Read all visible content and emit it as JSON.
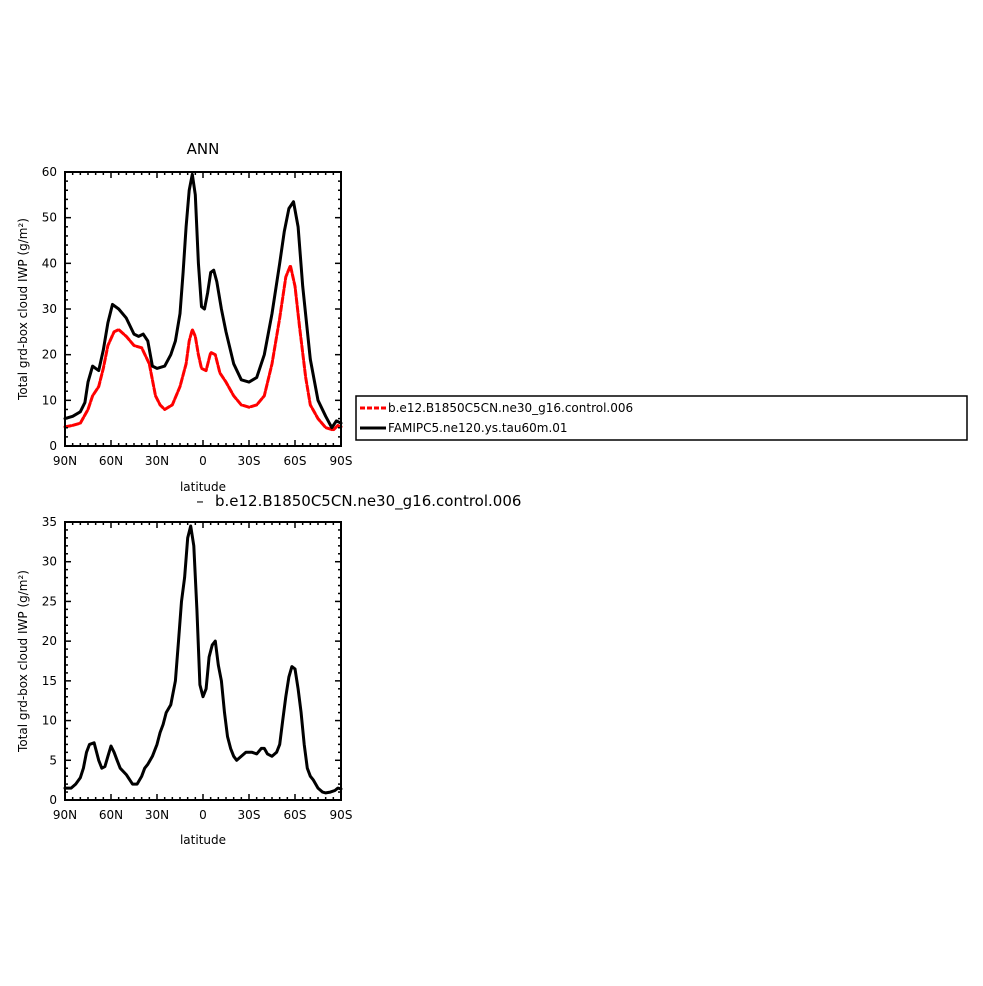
{
  "colors": {
    "series_1": "#ff0000",
    "series_2": "#000000",
    "axis": "#000000"
  },
  "top_title": "ANN",
  "bottom_title": "b.e12.B1850C5CN.ne30_g16.control.006",
  "bottom_title_prefix": "–",
  "legend": {
    "position": "right",
    "entries": [
      "b.e12.B1850C5CN.ne30_g16.control.006",
      "FAMIPC5.ne120.ys.tau60m.01"
    ]
  },
  "chart_data": [
    {
      "type": "line",
      "title": "ANN",
      "xlabel": "latitude",
      "ylabel": "Total grd-box cloud IWP (g/m²)",
      "xlim": [
        90,
        -90
      ],
      "ylim": [
        0,
        60
      ],
      "x_ticks": [
        "90N",
        "60N",
        "30N",
        "0",
        "30S",
        "60S",
        "90S"
      ],
      "y_ticks": [
        "0",
        "10",
        "20",
        "30",
        "40",
        "50",
        "60"
      ],
      "grid": false,
      "series": [
        {
          "name": "b.e12.B1850C5CN.ne30_g16.control.006",
          "color": "#ff0000",
          "dash": true,
          "x": [
            90,
            85,
            80,
            75,
            72,
            68,
            65,
            62,
            58,
            55,
            50,
            45,
            40,
            35,
            31,
            28,
            25,
            20,
            15,
            11,
            9,
            7,
            5,
            3,
            1,
            -2,
            -5,
            -8,
            -11,
            -15,
            -20,
            -25,
            -30,
            -35,
            -40,
            -45,
            -50,
            -54,
            -57,
            -60,
            -63,
            -67,
            -70,
            -75,
            -80,
            -85,
            -88,
            -90
          ],
          "y": [
            4.2,
            4.5,
            5.0,
            8.0,
            11.0,
            13.0,
            17.0,
            22.0,
            25.0,
            25.5,
            24.0,
            22.0,
            21.5,
            18.0,
            11.0,
            9.0,
            8.0,
            9.0,
            13.0,
            18.0,
            23.0,
            25.5,
            24.0,
            20.0,
            17.0,
            16.5,
            20.5,
            20.0,
            16.0,
            14.0,
            11.0,
            9.0,
            8.5,
            9.0,
            11.0,
            18.0,
            28.0,
            37.0,
            39.5,
            35.0,
            26.0,
            15.0,
            9.0,
            6.0,
            4.0,
            3.5,
            4.5,
            4.2
          ]
        },
        {
          "name": "FAMIPC5.ne120.ys.tau60m.01",
          "color": "#000000",
          "dash": false,
          "x": [
            90,
            85,
            80,
            77,
            75,
            72,
            70,
            68,
            65,
            62,
            59,
            55,
            50,
            45,
            42,
            39,
            36,
            33,
            30,
            25,
            21,
            18,
            15,
            13,
            11,
            9,
            7,
            5,
            3,
            1,
            -1,
            -3,
            -5,
            -7,
            -9,
            -12,
            -15,
            -20,
            -25,
            -30,
            -35,
            -40,
            -45,
            -50,
            -53,
            -56,
            -59,
            -62,
            -65,
            -70,
            -75,
            -80,
            -84,
            -87,
            -90
          ],
          "y": [
            6.0,
            6.5,
            7.5,
            9.5,
            14.0,
            17.5,
            17.0,
            16.5,
            21.0,
            27.0,
            31.0,
            30.0,
            28.0,
            24.5,
            24.0,
            24.5,
            23.0,
            17.5,
            17.0,
            17.5,
            20.0,
            23.0,
            29.0,
            38.0,
            48.0,
            56.0,
            59.5,
            55.0,
            40.0,
            30.5,
            30.0,
            33.5,
            38.0,
            38.5,
            36.0,
            30.0,
            25.0,
            18.0,
            14.5,
            14.0,
            15.0,
            20.0,
            29.0,
            40.0,
            47.0,
            52.0,
            53.5,
            48.0,
            35.0,
            19.0,
            10.0,
            6.5,
            4.0,
            5.5,
            5.0
          ]
        }
      ]
    },
    {
      "type": "line",
      "title": "b.e12.B1850C5CN.ne30_g16.control.006",
      "xlabel": "latitude",
      "ylabel": "Total grd-box cloud IWP (g/m²)",
      "xlim": [
        90,
        -90
      ],
      "ylim": [
        0,
        35
      ],
      "x_ticks": [
        "90N",
        "60N",
        "30N",
        "0",
        "30S",
        "60S",
        "90S"
      ],
      "y_ticks": [
        "0",
        "5",
        "10",
        "15",
        "20",
        "25",
        "30",
        "35"
      ],
      "grid": false,
      "series": [
        {
          "color": "#000000",
          "dash": false,
          "x": [
            90,
            86,
            83,
            80,
            78,
            76,
            74,
            71,
            68,
            66,
            64,
            62,
            60,
            58,
            56,
            54,
            50,
            46,
            43,
            40,
            38,
            36,
            33,
            30,
            28,
            26,
            24,
            21,
            18,
            16,
            14,
            12,
            10,
            8,
            6,
            4,
            2,
            0,
            -2,
            -4,
            -6,
            -8,
            -10,
            -12,
            -14,
            -16,
            -18,
            -20,
            -22,
            -25,
            -28,
            -30,
            -32,
            -35,
            -38,
            -40,
            -42,
            -45,
            -48,
            -50,
            -52,
            -54,
            -56,
            -58,
            -60,
            -62,
            -64,
            -66,
            -68,
            -70,
            -72,
            -75,
            -78,
            -80,
            -83,
            -86,
            -88,
            -90
          ],
          "y": [
            1.5,
            1.5,
            2.0,
            2.8,
            4.0,
            6.0,
            7.0,
            7.2,
            5.0,
            4.0,
            4.2,
            5.5,
            6.8,
            6.0,
            5.0,
            4.0,
            3.2,
            2.0,
            2.0,
            3.0,
            4.0,
            4.5,
            5.5,
            7.0,
            8.5,
            9.5,
            11.0,
            12.0,
            15.0,
            20.0,
            25.0,
            28.0,
            33.0,
            34.5,
            32.0,
            24.0,
            14.5,
            13.0,
            14.0,
            18.0,
            19.5,
            20.0,
            17.0,
            15.0,
            11.0,
            8.0,
            6.5,
            5.5,
            5.0,
            5.5,
            6.0,
            6.0,
            6.0,
            5.8,
            6.5,
            6.5,
            5.8,
            5.5,
            6.0,
            7.0,
            10.0,
            13.0,
            15.5,
            16.8,
            16.5,
            14.0,
            11.0,
            7.0,
            4.0,
            3.0,
            2.5,
            1.5,
            1.0,
            0.9,
            1.0,
            1.2,
            1.5,
            1.4
          ]
        }
      ]
    }
  ]
}
